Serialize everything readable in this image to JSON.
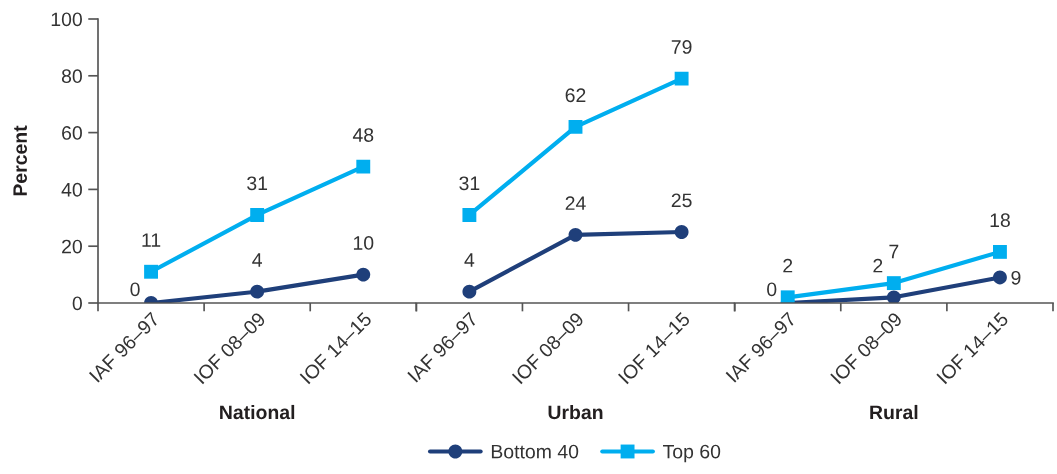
{
  "chart_data": [
    {
      "type": "line",
      "xlabel": "National",
      "ylabel": "Percent",
      "categories": [
        "IAF 96–97",
        "IOF 08–09",
        "IOF 14–15"
      ],
      "series": [
        {
          "name": "Bottom 40",
          "color": "#1f3f7a",
          "marker": "circle",
          "values": [
            0,
            4,
            10
          ]
        },
        {
          "name": "Top 60",
          "color": "#00aeef",
          "marker": "square",
          "values": [
            11,
            31,
            48
          ]
        }
      ],
      "ylim": [
        0,
        100
      ],
      "yticks": [
        0,
        20,
        40,
        60,
        80,
        100
      ],
      "legend": "bottom",
      "data_labels": true,
      "line_style": "solid"
    },
    {
      "type": "line",
      "xlabel": "Urban",
      "categories": [
        "IAF 96–97",
        "IOF 08–09",
        "IOF 14–15"
      ],
      "series": [
        {
          "color": "#1f3f7a",
          "marker": "circle",
          "values": [
            4,
            24,
            25
          ]
        },
        {
          "color": "#00aeef",
          "marker": "square",
          "values": [
            31,
            62,
            79
          ]
        }
      ],
      "ylim": [
        0,
        100
      ],
      "yticks": [
        0,
        20,
        40,
        60,
        80,
        100
      ],
      "tick_labels": "x",
      "data_labels": true,
      "line_style": "solid"
    },
    {
      "type": "line",
      "xlabel": "Rural",
      "categories": [
        "IAF 96–97",
        "IOF 08–09",
        "IOF 14–15"
      ],
      "series": [
        {
          "color": "#1f3f7a",
          "marker": "circle",
          "values": [
            0,
            2,
            9
          ]
        },
        {
          "color": "#00aeef",
          "marker": "square",
          "values": [
            2,
            7,
            18
          ]
        }
      ],
      "ylim": [
        0,
        100
      ],
      "yticks": [
        0,
        20,
        40,
        60,
        80,
        100
      ],
      "tick_labels": "x",
      "data_labels": true,
      "line_style": "solid"
    }
  ]
}
